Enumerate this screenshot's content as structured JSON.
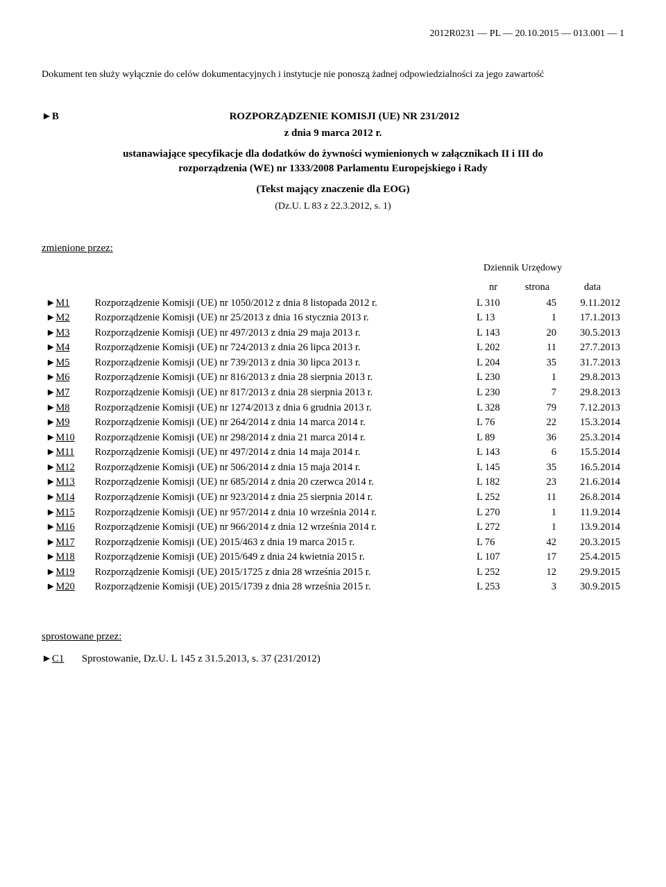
{
  "header": "2012R0231 — PL — 20.10.2015 — 013.001 — 1",
  "disclaimer": "Dokument ten służy wyłącznie do celów dokumentacyjnych i instytucje nie ponoszą żadnej odpowiedzialności za jego zawartość",
  "regulation": {
    "prefix": "►B",
    "title": "ROZPORZĄDZENIE KOMISJI (UE) NR 231/2012",
    "date_line": "z dnia 9 marca 2012 r.",
    "subject": "ustanawiające specyfikacje dla dodatków do żywności wymienionych w załącznikach II i III do rozporządzenia (WE) nr 1333/2008 Parlamentu Europejskiego i Rady",
    "eog": "(Tekst mający znaczenie dla EOG)",
    "oj_ref": "(Dz.U. L 83 z 22.3.2012, s. 1)"
  },
  "amended_by_label": "zmienione przez:",
  "journal_label": "Dziennik Urzędowy",
  "columns": {
    "nr": "nr",
    "page": "strona",
    "date": "data"
  },
  "amendments": [
    {
      "code": "M1",
      "desc": "Rozporządzenie Komisji (UE) nr 1050/2012 z dnia 8 listopada 2012 r.",
      "nr": "L 310",
      "page": "45",
      "date": "9.11.2012"
    },
    {
      "code": "M2",
      "desc": "Rozporządzenie Komisji (UE) nr 25/2013 z dnia 16 stycznia 2013 r.",
      "nr": "L 13",
      "page": "1",
      "date": "17.1.2013"
    },
    {
      "code": "M3",
      "desc": "Rozporządzenie Komisji (UE) nr 497/2013 z dnia 29 maja 2013 r.",
      "nr": "L 143",
      "page": "20",
      "date": "30.5.2013"
    },
    {
      "code": "M4",
      "desc": "Rozporządzenie Komisji (UE) nr 724/2013 z dnia 26 lipca 2013 r.",
      "nr": "L 202",
      "page": "11",
      "date": "27.7.2013"
    },
    {
      "code": "M5",
      "desc": "Rozporządzenie Komisji (UE) nr 739/2013 z dnia 30 lipca 2013 r.",
      "nr": "L 204",
      "page": "35",
      "date": "31.7.2013"
    },
    {
      "code": "M6",
      "desc": "Rozporządzenie Komisji (UE) nr 816/2013 z dnia 28 sierpnia 2013 r.",
      "nr": "L 230",
      "page": "1",
      "date": "29.8.2013"
    },
    {
      "code": "M7",
      "desc": "Rozporządzenie Komisji (UE) nr 817/2013 z dnia 28 sierpnia 2013 r.",
      "nr": "L 230",
      "page": "7",
      "date": "29.8.2013"
    },
    {
      "code": "M8",
      "desc": "Rozporządzenie Komisji (UE) nr 1274/2013 z dnia 6 grudnia 2013 r.",
      "nr": "L 328",
      "page": "79",
      "date": "7.12.2013"
    },
    {
      "code": "M9",
      "desc": "Rozporządzenie Komisji (UE) nr 264/2014 z dnia 14 marca 2014 r.",
      "nr": "L 76",
      "page": "22",
      "date": "15.3.2014"
    },
    {
      "code": "M10",
      "desc": "Rozporządzenie Komisji (UE) nr 298/2014 z dnia 21 marca 2014 r.",
      "nr": "L 89",
      "page": "36",
      "date": "25.3.2014"
    },
    {
      "code": "M11",
      "desc": "Rozporządzenie Komisji (UE) nr 497/2014 z dnia 14 maja 2014 r.",
      "nr": "L 143",
      "page": "6",
      "date": "15.5.2014"
    },
    {
      "code": "M12",
      "desc": "Rozporządzenie Komisji (UE) nr 506/2014 z dnia 15 maja 2014 r.",
      "nr": "L 145",
      "page": "35",
      "date": "16.5.2014"
    },
    {
      "code": "M13",
      "desc": "Rozporządzenie Komisji (UE) nr 685/2014 z dnia 20 czerwca 2014 r.",
      "nr": "L 182",
      "page": "23",
      "date": "21.6.2014"
    },
    {
      "code": "M14",
      "desc": "Rozporządzenie Komisji (UE) nr 923/2014 z dnia 25 sierpnia 2014 r.",
      "nr": "L 252",
      "page": "11",
      "date": "26.8.2014"
    },
    {
      "code": "M15",
      "desc": "Rozporządzenie Komisji (UE) nr 957/2014 z dnia 10 września 2014 r.",
      "nr": "L 270",
      "page": "1",
      "date": "11.9.2014"
    },
    {
      "code": "M16",
      "desc": "Rozporządzenie Komisji (UE) nr 966/2014 z dnia 12 września 2014 r.",
      "nr": "L 272",
      "page": "1",
      "date": "13.9.2014"
    },
    {
      "code": "M17",
      "desc": "Rozporządzenie Komisji (UE) 2015/463 z dnia 19 marca 2015 r.",
      "nr": "L 76",
      "page": "42",
      "date": "20.3.2015"
    },
    {
      "code": "M18",
      "desc": "Rozporządzenie Komisji (UE) 2015/649 z dnia 24 kwietnia 2015 r.",
      "nr": "L 107",
      "page": "17",
      "date": "25.4.2015"
    },
    {
      "code": "M19",
      "desc": "Rozporządzenie Komisji (UE) 2015/1725 z dnia 28 września 2015 r.",
      "nr": "L 252",
      "page": "12",
      "date": "29.9.2015"
    },
    {
      "code": "M20",
      "desc": "Rozporządzenie Komisji (UE) 2015/1739 z dnia 28 września 2015 r.",
      "nr": "L 253",
      "page": "3",
      "date": "30.9.2015"
    }
  ],
  "corrected_by_label": "sprostowane przez:",
  "corrigendum": {
    "code": "C1",
    "desc": "Sprostowanie, Dz.U. L 145 z 31.5.2013, s. 37 (231/2012)"
  }
}
